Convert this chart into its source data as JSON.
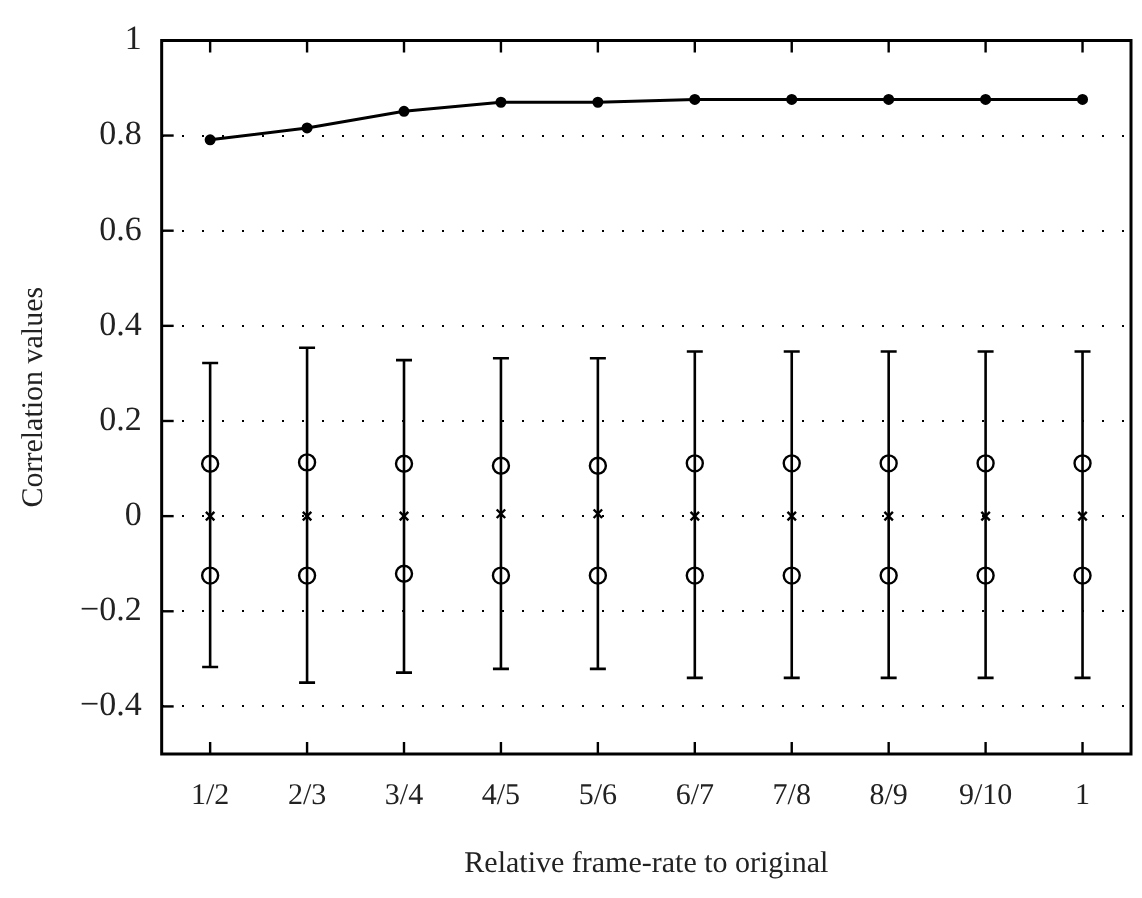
{
  "chart_data": {
    "type": "line",
    "xlabel": "Relative frame-rate to original",
    "ylabel": "Correlation values",
    "categories": [
      "1/2",
      "2/3",
      "3/4",
      "4/5",
      "5/6",
      "6/7",
      "7/8",
      "8/9",
      "9/10",
      "1"
    ],
    "series": [
      {
        "color": "#000000",
        "marker": "circle",
        "values": [
          0.791,
          0.816,
          0.851,
          0.87,
          0.87,
          0.876,
          0.876,
          0.876,
          0.876,
          0.876
        ]
      },
      {
        "type": "scatter",
        "color": "#000000",
        "marker": "cross",
        "values": [
          0,
          0,
          0,
          0.005,
          0.005,
          0,
          0,
          0,
          0,
          0
        ],
        "errors": [
          [
            -0.317,
            0.322
          ],
          [
            -0.35,
            0.354
          ],
          [
            -0.329,
            0.328
          ],
          [
            -0.321,
            0.332
          ],
          [
            -0.321,
            0.332
          ],
          [
            -0.34,
            0.346
          ],
          [
            -0.34,
            0.346
          ],
          [
            -0.34,
            0.346
          ],
          [
            -0.34,
            0.346
          ],
          [
            -0.34,
            0.346
          ]
        ]
      },
      {
        "type": "scatter",
        "color": "#000000",
        "marker": "circle",
        "values": [
          0.11,
          0.113,
          0.11,
          0.106,
          0.106,
          0.111,
          0.111,
          0.111,
          0.111,
          0.111
        ]
      },
      {
        "type": "scatter",
        "color": "#000000",
        "marker": "circle",
        "values": [
          -0.125,
          -0.125,
          -0.121,
          -0.125,
          -0.125,
          -0.125,
          -0.125,
          -0.125,
          -0.125,
          -0.125
        ]
      }
    ],
    "ylim": [
      -0.5,
      1
    ],
    "yticks": [
      {
        "value": -0.4,
        "label": "−0.4"
      },
      {
        "value": -0.2,
        "label": "−0.2"
      },
      0,
      0.2,
      0.4,
      0.6,
      0.8,
      1
    ],
    "grid": "y",
    "legend": false
  }
}
